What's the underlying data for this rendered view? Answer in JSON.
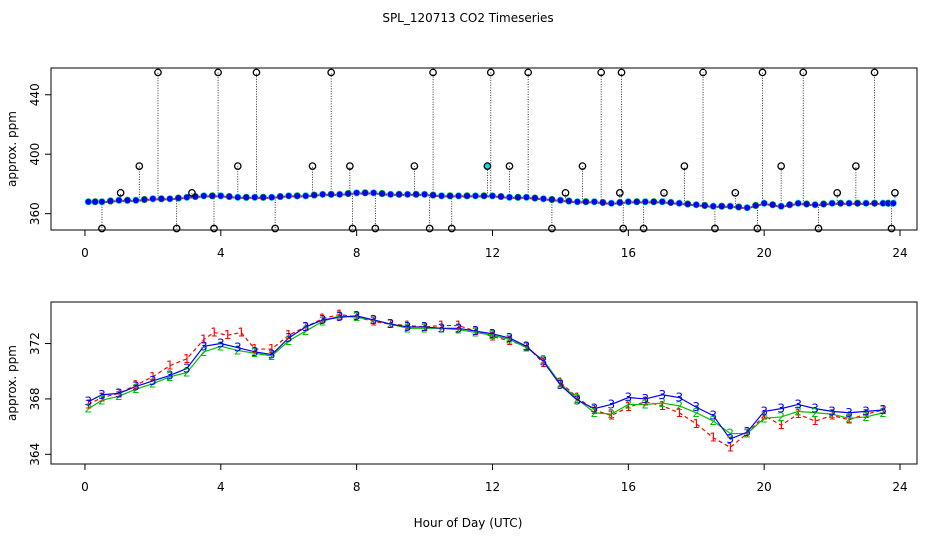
{
  "figure": {
    "title": "SPL_120713  CO2 Timeseries",
    "xlabel": "Hour of Day (UTC)"
  },
  "colors": {
    "series1": "#ff0000",
    "series2": "#00c000",
    "series3": "#0000ff",
    "highlight": "#00e5ee",
    "outlier": "#000000"
  },
  "chart_data": [
    {
      "type": "scatter",
      "title": "",
      "xlabel": "",
      "ylabel": "approx. ppm",
      "xlim": [
        -1,
        24.5
      ],
      "ylim": [
        349,
        458
      ],
      "x_ticks": [
        0,
        4,
        8,
        12,
        16,
        20,
        24
      ],
      "y_ticks": [
        360,
        400,
        440
      ],
      "grid": false,
      "legend": "none",
      "series": [
        {
          "marker": "filled circle",
          "x": [
            0.1,
            0.5,
            1.0,
            1.5,
            2.0,
            2.5,
            3.0,
            3.5,
            4.0,
            4.5,
            5.0,
            5.5,
            6.0,
            6.5,
            7.0,
            7.5,
            8.0,
            8.5,
            9.0,
            9.5,
            10.0,
            10.5,
            11.0,
            11.5,
            12.0,
            12.5,
            13.0,
            13.5,
            14.0,
            14.5,
            15.0,
            15.5,
            16.0,
            16.5,
            17.0,
            17.5,
            18.0,
            18.5,
            19.0,
            19.5,
            20.0,
            20.5,
            21.0,
            21.5,
            22.0,
            22.5,
            23.0,
            23.5,
            23.8
          ],
          "y": [
            368,
            368,
            369,
            369,
            370,
            370,
            371,
            372,
            372,
            371,
            371,
            371,
            372,
            372,
            373,
            373,
            374,
            374,
            373,
            373,
            373,
            372,
            372,
            372,
            372,
            371,
            371,
            370,
            369,
            368,
            368,
            367,
            368,
            368,
            368,
            367,
            366,
            365,
            365,
            364,
            367,
            365,
            367,
            366,
            367,
            367,
            367,
            367,
            367
          ]
        },
        {
          "marker": "open circle (outliers)",
          "x": [
            0.5,
            1.05,
            1.6,
            2.15,
            2.7,
            3.15,
            3.8,
            3.92,
            4.5,
            5.05,
            5.6,
            6.7,
            7.25,
            7.8,
            7.88,
            8.55,
            9.7,
            10.15,
            10.25,
            10.8,
            11.85,
            11.95,
            12.5,
            13.05,
            13.75,
            14.15,
            14.65,
            15.2,
            15.75,
            15.8,
            15.85,
            16.45,
            17.05,
            17.65,
            18.2,
            18.55,
            19.15,
            19.8,
            19.95,
            20.5,
            21.15,
            21.6,
            22.15,
            22.7,
            23.25,
            23.75,
            23.85
          ],
          "y": [
            350,
            374,
            392,
            455,
            350,
            374,
            350,
            455,
            392,
            455,
            350,
            392,
            455,
            392,
            350,
            350,
            392,
            350,
            455,
            350,
            392,
            455,
            392,
            455,
            350,
            374,
            392,
            455,
            374,
            455,
            350,
            350,
            374,
            392,
            455,
            350,
            374,
            350,
            455,
            392,
            455,
            350,
            374,
            392,
            455,
            350,
            374
          ]
        }
      ]
    },
    {
      "type": "scatter",
      "title": "",
      "xlabel": "",
      "ylabel": "approx. ppm",
      "xlim": [
        -1,
        24.5
      ],
      "ylim": [
        363.3,
        375.0
      ],
      "x_ticks": [
        0,
        4,
        8,
        12,
        16,
        20,
        24
      ],
      "y_ticks": [
        364,
        368,
        372
      ],
      "grid": false,
      "legend": "none",
      "series": [
        {
          "marker": "1",
          "x": [
            0.1,
            0.5,
            1.0,
            1.5,
            2.0,
            2.5,
            3.0,
            3.5,
            3.8,
            4.2,
            4.6,
            5.0,
            5.5,
            6.0,
            6.5,
            7.0,
            7.5,
            8.0,
            8.5,
            9.0,
            9.5,
            10.0,
            10.5,
            11.0,
            11.5,
            12.0,
            12.5,
            13.0,
            13.5,
            14.0,
            14.5,
            15.0,
            15.5,
            16.0,
            16.5,
            17.0,
            17.5,
            18.0,
            18.5,
            19.0,
            19.5,
            20.0,
            20.5,
            21.0,
            21.5,
            22.0,
            22.5,
            23.0,
            23.5
          ],
          "y": [
            367.6,
            368.1,
            368.4,
            369.0,
            369.6,
            370.4,
            370.9,
            372.3,
            372.8,
            372.6,
            372.8,
            371.6,
            371.6,
            372.6,
            373.2,
            373.8,
            374.1,
            373.9,
            373.6,
            373.4,
            373.3,
            373.2,
            373.3,
            373.3,
            372.9,
            372.5,
            372.2,
            371.8,
            370.6,
            369.2,
            368.1,
            367.2,
            366.8,
            367.4,
            367.8,
            367.5,
            367.0,
            366.2,
            365.2,
            364.5,
            365.5,
            366.8,
            366.1,
            366.9,
            366.4,
            366.8,
            366.5,
            366.9,
            367.2
          ]
        },
        {
          "marker": "2",
          "x": [
            0.1,
            0.5,
            1.0,
            1.5,
            2.0,
            2.5,
            3.0,
            3.5,
            4.0,
            4.5,
            5.0,
            5.5,
            6.0,
            6.5,
            7.0,
            7.5,
            8.0,
            8.5,
            9.0,
            9.5,
            10.0,
            10.5,
            11.0,
            11.5,
            12.0,
            12.5,
            13.0,
            13.5,
            14.0,
            14.5,
            15.0,
            15.5,
            16.0,
            16.5,
            17.0,
            17.5,
            18.0,
            18.5,
            19.0,
            19.5,
            20.0,
            20.5,
            21.0,
            21.5,
            22.0,
            22.5,
            23.0,
            23.5
          ],
          "y": [
            367.3,
            367.9,
            368.2,
            368.7,
            369.1,
            369.6,
            369.9,
            371.4,
            371.8,
            371.5,
            371.3,
            371.1,
            372.2,
            372.9,
            373.6,
            374.0,
            373.9,
            373.7,
            373.4,
            373.1,
            373.1,
            373.1,
            373.0,
            372.8,
            372.6,
            372.3,
            371.7,
            370.8,
            369.1,
            368.0,
            367.0,
            366.9,
            367.6,
            367.6,
            367.7,
            367.5,
            367.0,
            366.4,
            365.5,
            365.5,
            366.6,
            366.7,
            367.1,
            367.0,
            366.9,
            366.6,
            366.7,
            367.0
          ]
        },
        {
          "marker": "3",
          "x": [
            0.1,
            0.5,
            1.0,
            1.5,
            2.0,
            2.5,
            3.0,
            3.5,
            4.0,
            4.5,
            5.0,
            5.5,
            6.0,
            6.5,
            7.0,
            7.5,
            8.0,
            8.5,
            9.0,
            9.5,
            10.0,
            10.5,
            11.0,
            11.5,
            12.0,
            12.5,
            13.0,
            13.5,
            14.0,
            14.5,
            15.0,
            15.5,
            16.0,
            16.5,
            17.0,
            17.5,
            18.0,
            18.5,
            19.0,
            19.5,
            20.0,
            20.5,
            21.0,
            21.5,
            22.0,
            22.5,
            23.0,
            23.5
          ],
          "y": [
            367.8,
            368.3,
            368.4,
            368.9,
            369.3,
            369.7,
            370.2,
            371.8,
            372.0,
            371.7,
            371.4,
            371.2,
            372.4,
            373.2,
            373.7,
            373.9,
            374.0,
            373.7,
            373.4,
            373.2,
            373.2,
            373.1,
            373.1,
            372.9,
            372.7,
            372.4,
            371.8,
            370.7,
            369.0,
            367.9,
            367.3,
            367.6,
            368.1,
            368.0,
            368.3,
            368.1,
            367.4,
            366.8,
            365.1,
            365.6,
            367.1,
            367.3,
            367.6,
            367.3,
            367.1,
            367.0,
            367.1,
            367.2
          ]
        }
      ]
    }
  ]
}
